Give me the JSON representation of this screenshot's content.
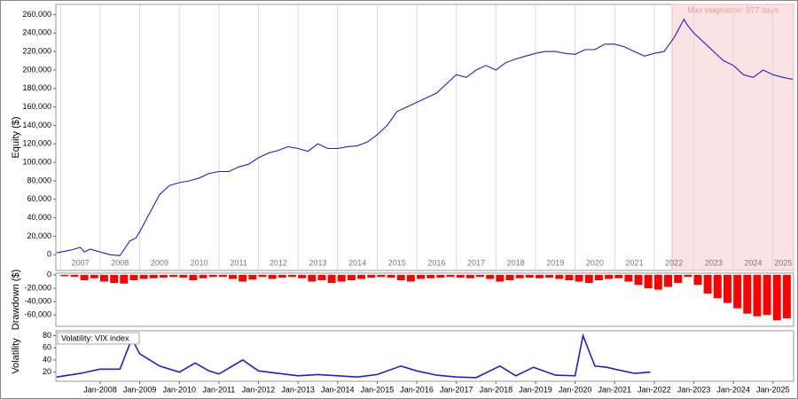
{
  "chart_data": [
    {
      "type": "line",
      "y_label": "Equity ($)",
      "color": "#1f1fd6",
      "grid": "x",
      "xlim": [
        2006.88,
        2025.52
      ],
      "ylim": [
        -17000,
        271000
      ],
      "yticks": [
        0,
        {
          "value": 20000,
          "label": "20,000"
        },
        {
          "value": 40000,
          "label": "40,000"
        },
        {
          "value": 60000,
          "label": "60,000"
        },
        {
          "value": 80000,
          "label": "80,000"
        },
        {
          "value": 100000,
          "label": "100,000"
        },
        {
          "value": 120000,
          "label": "120,000"
        },
        {
          "value": 140000,
          "label": "140,000"
        },
        {
          "value": 160000,
          "label": "160,000"
        },
        {
          "value": 180000,
          "label": "180,000"
        },
        {
          "value": 200000,
          "label": "200,000"
        },
        {
          "value": 220000,
          "label": "220,000"
        },
        {
          "value": 240000,
          "label": "240,000"
        },
        {
          "value": 260000,
          "label": "260,000"
        }
      ],
      "year_labels": [
        2007,
        2008,
        2009,
        2010,
        2011,
        2012,
        2013,
        2014,
        2015,
        2016,
        2017,
        2018,
        2019,
        2020,
        2021,
        2022,
        2023,
        2024,
        2025
      ],
      "stagnation": {
        "label": "Max stagnation: 977 days",
        "x": [
          2022.45,
          2025.52
        ]
      },
      "x": [
        2006.9,
        2007.25,
        2007.5,
        2007.6,
        2007.75,
        2008.0,
        2008.25,
        2008.5,
        2008.75,
        2008.9,
        2009.0,
        2009.25,
        2009.5,
        2009.75,
        2010.0,
        2010.25,
        2010.5,
        2010.75,
        2011.0,
        2011.25,
        2011.5,
        2011.75,
        2012.0,
        2012.25,
        2012.5,
        2012.75,
        2013.0,
        2013.25,
        2013.5,
        2013.75,
        2014.0,
        2014.25,
        2014.5,
        2014.75,
        2015.0,
        2015.25,
        2015.5,
        2015.75,
        2016.0,
        2016.25,
        2016.5,
        2016.75,
        2017.0,
        2017.25,
        2017.5,
        2017.75,
        2018.0,
        2018.25,
        2018.5,
        2018.75,
        2019.0,
        2019.25,
        2019.5,
        2019.75,
        2020.0,
        2020.25,
        2020.5,
        2020.75,
        2021.0,
        2021.25,
        2021.5,
        2021.75,
        2022.0,
        2022.25,
        2022.5,
        2022.75,
        2022.85,
        2023.0,
        2023.25,
        2023.5,
        2023.75,
        2024.0,
        2024.25,
        2024.5,
        2024.75,
        2025.0,
        2025.25,
        2025.5
      ],
      "values": [
        2000,
        5000,
        8000,
        3000,
        6000,
        3000,
        0,
        -1000,
        15000,
        18000,
        25000,
        45000,
        65000,
        75000,
        78000,
        80000,
        83000,
        88000,
        90000,
        90000,
        95000,
        98000,
        105000,
        110000,
        113000,
        117000,
        115000,
        112000,
        120000,
        115000,
        115000,
        117000,
        118000,
        122000,
        130000,
        140000,
        155000,
        160000,
        165000,
        170000,
        175000,
        185000,
        195000,
        192000,
        200000,
        205000,
        200000,
        208000,
        212000,
        215000,
        218000,
        220000,
        220000,
        218000,
        217000,
        222000,
        222000,
        228000,
        228000,
        225000,
        220000,
        215000,
        218000,
        220000,
        235000,
        255000,
        248000,
        240000,
        230000,
        220000,
        210000,
        205000,
        195000,
        192000,
        200000,
        195000,
        192000,
        190000
      ]
    },
    {
      "type": "bar",
      "y_label": "Drawdown ($)",
      "color": "#ff0000",
      "xlim": [
        2006.88,
        2025.52
      ],
      "ylim": [
        -77000,
        2700
      ],
      "yticks": [
        0,
        {
          "value": -20000,
          "label": "-20,000"
        },
        {
          "value": -40000,
          "label": "-40,000"
        },
        {
          "value": -60000,
          "label": "-60,000"
        }
      ],
      "x": [
        2007.0,
        2007.25,
        2007.5,
        2007.75,
        2008.0,
        2008.25,
        2008.5,
        2008.75,
        2009.0,
        2009.25,
        2009.5,
        2009.75,
        2010.0,
        2010.25,
        2010.5,
        2010.75,
        2011.0,
        2011.25,
        2011.5,
        2011.75,
        2012.0,
        2012.25,
        2012.5,
        2012.75,
        2013.0,
        2013.25,
        2013.5,
        2013.75,
        2014.0,
        2014.25,
        2014.5,
        2014.75,
        2015.0,
        2015.25,
        2015.5,
        2015.75,
        2016.0,
        2016.25,
        2016.5,
        2016.75,
        2017.0,
        2017.25,
        2017.5,
        2017.75,
        2018.0,
        2018.25,
        2018.5,
        2018.75,
        2019.0,
        2019.25,
        2019.5,
        2019.75,
        2020.0,
        2020.25,
        2020.5,
        2020.75,
        2021.0,
        2021.25,
        2021.5,
        2021.75,
        2022.0,
        2022.25,
        2022.5,
        2022.75,
        2023.0,
        2023.25,
        2023.5,
        2023.75,
        2024.0,
        2024.25,
        2024.5,
        2024.75,
        2025.0,
        2025.25
      ],
      "values": [
        -2000,
        -3000,
        -8000,
        -5000,
        -10000,
        -12000,
        -13000,
        -8000,
        -6000,
        -5000,
        -4000,
        -3000,
        -4000,
        -8000,
        -5000,
        -3000,
        -3000,
        -6000,
        -10000,
        -7000,
        -3000,
        -6000,
        -4000,
        -3000,
        -5000,
        -10000,
        -8000,
        -12000,
        -10000,
        -8000,
        -6000,
        -4000,
        -3000,
        -4000,
        -8000,
        -10000,
        -6000,
        -5000,
        -4000,
        -3000,
        -4000,
        -5000,
        -3000,
        -6000,
        -10000,
        -8000,
        -5000,
        -4000,
        -5000,
        -4000,
        -6000,
        -8000,
        -10000,
        -12000,
        -8000,
        -6000,
        -5000,
        -10000,
        -15000,
        -20000,
        -22000,
        -18000,
        -12000,
        -3000,
        -15000,
        -28000,
        -35000,
        -42000,
        -50000,
        -58000,
        -62000,
        -60000,
        -68000,
        -65000
      ]
    },
    {
      "type": "line",
      "y_label": "Volatility",
      "legend": "Volatility: VIX index",
      "color": "#1f1fd6",
      "xlim": [
        2006.88,
        2025.52
      ],
      "ylim": [
        5,
        88
      ],
      "yticks": [
        20,
        40,
        60,
        80
      ],
      "xticks": [
        {
          "value": 2008,
          "label": "Jan-2008"
        },
        {
          "value": 2009,
          "label": "Jan-2009"
        },
        {
          "value": 2010,
          "label": "Jan-2010"
        },
        {
          "value": 2011,
          "label": "Jan-2011"
        },
        {
          "value": 2012,
          "label": "Jan-2012"
        },
        {
          "value": 2013,
          "label": "Jan-2013"
        },
        {
          "value": 2014,
          "label": "Jan-2014"
        },
        {
          "value": 2015,
          "label": "Jan-2015"
        },
        {
          "value": 2016,
          "label": "Jan-2016"
        },
        {
          "value": 2017,
          "label": "Jan-2017"
        },
        {
          "value": 2018,
          "label": "Jan-2018"
        },
        {
          "value": 2019,
          "label": "Jan-2019"
        },
        {
          "value": 2020,
          "label": "Jan-2020"
        },
        {
          "value": 2021,
          "label": "Jan-2021"
        },
        {
          "value": 2022,
          "label": "Jan-2022"
        },
        {
          "value": 2023,
          "label": "Jan-2023"
        },
        {
          "value": 2024,
          "label": "Jan-2024"
        },
        {
          "value": 2025,
          "label": "Jan-2025"
        }
      ],
      "x": [
        2006.9,
        2007.5,
        2008.0,
        2008.5,
        2008.8,
        2009.0,
        2009.5,
        2010.0,
        2010.4,
        2010.75,
        2011.0,
        2011.6,
        2012.0,
        2012.5,
        2013.0,
        2013.5,
        2014.0,
        2014.5,
        2015.0,
        2015.6,
        2016.0,
        2016.5,
        2017.0,
        2017.5,
        2018.1,
        2018.5,
        2018.95,
        2019.5,
        2020.0,
        2020.2,
        2020.5,
        2020.8,
        2021.0,
        2021.5,
        2021.9
      ],
      "values": [
        12,
        18,
        25,
        25,
        75,
        50,
        30,
        20,
        35,
        22,
        17,
        40,
        22,
        18,
        14,
        16,
        14,
        12,
        16,
        30,
        22,
        15,
        12,
        11,
        30,
        14,
        28,
        15,
        14,
        80,
        30,
        28,
        25,
        18,
        20
      ]
    }
  ]
}
